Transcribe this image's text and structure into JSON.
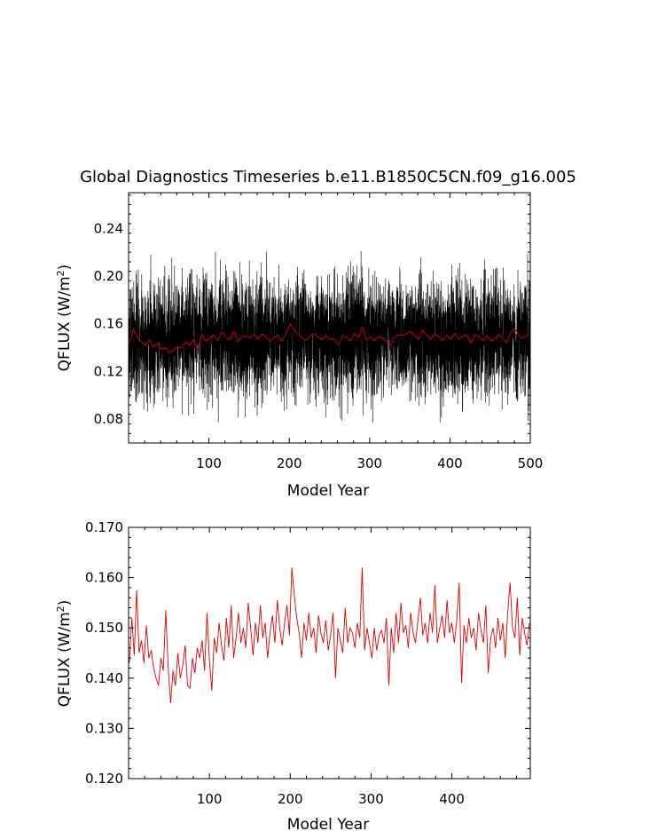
{
  "figure": {
    "title": "Global Diagnostics Timeseries b.e11.B1850C5CN.f09_g16.005"
  },
  "chart_data": [
    {
      "type": "line",
      "xlabel": "Model Year",
      "ylabel": "QFLUX (W/m²)",
      "ylabel_text": "QFLUX (W/m",
      "ylabel_sup": "2",
      "ylabel_close": ")",
      "xlim": [
        0,
        500
      ],
      "ylim": [
        0.06,
        0.27
      ],
      "x_ticks": [
        100,
        200,
        300,
        400,
        500
      ],
      "x_tick_labels": [
        "100",
        "200",
        "300",
        "400",
        "500"
      ],
      "y_ticks": [
        0.08,
        0.12,
        0.16,
        0.2,
        0.24
      ],
      "y_tick_labels": [
        "0.08",
        "0.12",
        "0.16",
        "0.20",
        "0.24"
      ],
      "grid": false,
      "series": [
        {
          "kind": "monthly",
          "color": "#000000",
          "x_range": [
            0,
            500
          ],
          "samples_per_year": 12,
          "mean": 0.148,
          "std": 0.024,
          "min": 0.077,
          "max": 0.251,
          "seed": 7
        },
        {
          "kind": "annual",
          "color": "#e00000",
          "x": [
            1,
            6,
            11,
            16,
            21,
            26,
            31,
            36,
            41,
            46,
            51,
            56,
            61,
            66,
            71,
            76,
            81,
            86,
            91,
            96,
            101,
            106,
            111,
            116,
            121,
            126,
            131,
            136,
            141,
            146,
            151,
            156,
            161,
            166,
            171,
            176,
            181,
            186,
            191,
            196,
            201,
            206,
            211,
            216,
            221,
            226,
            231,
            236,
            241,
            246,
            251,
            256,
            261,
            266,
            271,
            276,
            281,
            286,
            291,
            296,
            301,
            306,
            311,
            316,
            321,
            326,
            331,
            336,
            341,
            346,
            351,
            356,
            361,
            366,
            371,
            376,
            381,
            386,
            391,
            396,
            401,
            406,
            411,
            416,
            421,
            426,
            431,
            436,
            441,
            446,
            451,
            456,
            461,
            466,
            471,
            476,
            481,
            486,
            491,
            496
          ],
          "values": [
            0.144,
            0.1555,
            0.1485,
            0.145,
            0.142,
            0.1465,
            0.1405,
            0.144,
            0.1385,
            0.14,
            0.1355,
            0.138,
            0.141,
            0.1395,
            0.145,
            0.142,
            0.147,
            0.138,
            0.151,
            0.1455,
            0.148,
            0.1505,
            0.146,
            0.153,
            0.149,
            0.147,
            0.1535,
            0.145,
            0.149,
            0.15,
            0.148,
            0.152,
            0.147,
            0.1515,
            0.1495,
            0.145,
            0.1485,
            0.1505,
            0.146,
            0.152,
            0.16,
            0.155,
            0.151,
            0.1485,
            0.146,
            0.1495,
            0.152,
            0.1485,
            0.147,
            0.15,
            0.1465,
            0.148,
            0.142,
            0.15,
            0.149,
            0.1455,
            0.152,
            0.1485,
            0.157,
            0.147,
            0.149,
            0.146,
            0.149,
            0.1485,
            0.145,
            0.142,
            0.149,
            0.151,
            0.15,
            0.152,
            0.1535,
            0.1505,
            0.147,
            0.155,
            0.1505,
            0.147,
            0.1515,
            0.149,
            0.146,
            0.1505,
            0.147,
            0.152,
            0.147,
            0.1495,
            0.151,
            0.144,
            0.151,
            0.149,
            0.146,
            0.15,
            0.1455,
            0.147,
            0.151,
            0.148,
            0.144,
            0.153,
            0.156,
            0.15,
            0.1475,
            0.1505
          ]
        }
      ]
    },
    {
      "type": "line",
      "xlabel": "Model Year",
      "ylabel": "QFLUX (W/m²)",
      "ylabel_text": "QFLUX (W/m",
      "ylabel_sup": "2",
      "ylabel_close": ")",
      "xlim": [
        0,
        497
      ],
      "ylim": [
        0.12,
        0.17
      ],
      "x_ticks": [
        100,
        200,
        300,
        400
      ],
      "x_tick_labels": [
        "100",
        "200",
        "300",
        "400"
      ],
      "y_ticks": [
        0.12,
        0.13,
        0.14,
        0.15,
        0.16,
        0.17
      ],
      "y_tick_labels": [
        "0.120",
        "0.130",
        "0.140",
        "0.150",
        "0.160",
        "0.170"
      ],
      "grid": false,
      "series": [
        {
          "kind": "annual",
          "color": "#e00000",
          "x": [
            1,
            4,
            7,
            10,
            13,
            16,
            19,
            22,
            25,
            28,
            31,
            34,
            37,
            40,
            43,
            46,
            49,
            52,
            55,
            58,
            61,
            64,
            67,
            70,
            73,
            76,
            79,
            82,
            85,
            88,
            91,
            94,
            97,
            100,
            103,
            106,
            109,
            112,
            115,
            118,
            121,
            124,
            127,
            130,
            133,
            136,
            139,
            142,
            145,
            148,
            151,
            154,
            157,
            160,
            163,
            166,
            169,
            172,
            175,
            178,
            181,
            184,
            187,
            190,
            193,
            196,
            199,
            202,
            205,
            208,
            211,
            214,
            217,
            220,
            223,
            226,
            229,
            232,
            235,
            238,
            241,
            244,
            247,
            250,
            253,
            256,
            259,
            262,
            265,
            268,
            271,
            274,
            277,
            280,
            283,
            286,
            289,
            292,
            295,
            298,
            301,
            304,
            307,
            310,
            313,
            316,
            319,
            322,
            325,
            328,
            331,
            334,
            337,
            340,
            343,
            346,
            349,
            352,
            355,
            358,
            361,
            364,
            367,
            370,
            373,
            376,
            379,
            382,
            385,
            388,
            391,
            394,
            397,
            400,
            403,
            406,
            409,
            412,
            415,
            418,
            421,
            424,
            427,
            430,
            433,
            436,
            439,
            442,
            445,
            448,
            451,
            454,
            457,
            460,
            463,
            466,
            469,
            472,
            475,
            478,
            481,
            484,
            487,
            490,
            493,
            496
          ],
          "values": [
            0.143,
            0.152,
            0.1445,
            0.1575,
            0.145,
            0.1475,
            0.143,
            0.1505,
            0.144,
            0.1455,
            0.142,
            0.14,
            0.1385,
            0.144,
            0.1415,
            0.1535,
            0.142,
            0.135,
            0.1415,
            0.1385,
            0.145,
            0.14,
            0.1425,
            0.1465,
            0.1385,
            0.138,
            0.144,
            0.141,
            0.146,
            0.144,
            0.1475,
            0.1415,
            0.153,
            0.1435,
            0.1375,
            0.148,
            0.145,
            0.151,
            0.1465,
            0.1435,
            0.152,
            0.146,
            0.1545,
            0.144,
            0.148,
            0.153,
            0.147,
            0.15,
            0.146,
            0.155,
            0.15,
            0.1445,
            0.151,
            0.147,
            0.1545,
            0.148,
            0.151,
            0.144,
            0.149,
            0.1525,
            0.147,
            0.1555,
            0.15,
            0.1465,
            0.151,
            0.1545,
            0.1485,
            0.162,
            0.1565,
            0.152,
            0.149,
            0.144,
            0.151,
            0.1475,
            0.153,
            0.148,
            0.15,
            0.145,
            0.1525,
            0.149,
            0.147,
            0.1515,
            0.1455,
            0.1485,
            0.153,
            0.14,
            0.15,
            0.1475,
            0.145,
            0.154,
            0.147,
            0.15,
            0.149,
            0.146,
            0.151,
            0.148,
            0.162,
            0.1455,
            0.15,
            0.147,
            0.144,
            0.15,
            0.1455,
            0.1485,
            0.1495,
            0.147,
            0.152,
            0.1385,
            0.15,
            0.145,
            0.153,
            0.147,
            0.155,
            0.149,
            0.1505,
            0.146,
            0.153,
            0.149,
            0.147,
            0.1515,
            0.156,
            0.1485,
            0.151,
            0.147,
            0.153,
            0.149,
            0.1585,
            0.147,
            0.15,
            0.1525,
            0.148,
            0.1555,
            0.149,
            0.151,
            0.147,
            0.1515,
            0.159,
            0.139,
            0.1505,
            0.147,
            0.152,
            0.148,
            0.15,
            0.1455,
            0.153,
            0.1495,
            0.147,
            0.1545,
            0.141,
            0.148,
            0.15,
            0.146,
            0.152,
            0.1475,
            0.151,
            0.144,
            0.153,
            0.159,
            0.15,
            0.148,
            0.156,
            0.1445,
            0.152,
            0.149,
            0.1465,
            0.151
          ]
        }
      ]
    }
  ]
}
